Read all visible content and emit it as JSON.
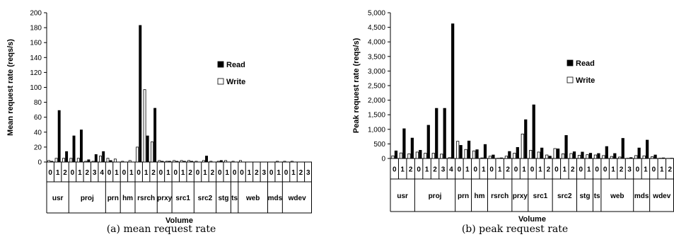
{
  "chart_data": [
    {
      "type": "bar",
      "caption": "(a) mean request rate",
      "xlabel": "Volume",
      "ylabel": "Mean request rate (reqs/s)",
      "ylim": [
        0,
        200
      ],
      "yticks": [
        0,
        20,
        40,
        60,
        80,
        100,
        120,
        140,
        160,
        180,
        200
      ],
      "ytick_labels": [
        "0",
        "20",
        "40",
        "60",
        "80",
        "100",
        "120",
        "140",
        "160",
        "180",
        "200"
      ],
      "legend": "right",
      "groups": [
        {
          "name": "usr",
          "count": 3
        },
        {
          "name": "proj",
          "count": 5
        },
        {
          "name": "prn",
          "count": 2
        },
        {
          "name": "hm",
          "count": 2
        },
        {
          "name": "rsrch",
          "count": 3
        },
        {
          "name": "prxy",
          "count": 2
        },
        {
          "name": "src1",
          "count": 3
        },
        {
          "name": "src2",
          "count": 3
        },
        {
          "name": "stg",
          "count": 2
        },
        {
          "name": "ts",
          "count": 1
        },
        {
          "name": "web",
          "count": 4
        },
        {
          "name": "mds",
          "count": 2
        },
        {
          "name": "wdev",
          "count": 4
        }
      ],
      "categories": [
        "0",
        "1",
        "2",
        "0",
        "1",
        "2",
        "3",
        "4",
        "0",
        "1",
        "0",
        "1",
        "0",
        "1",
        "2",
        "0",
        "1",
        "0",
        "1",
        "2",
        "0",
        "1",
        "2",
        "0",
        "1",
        "0",
        "0",
        "1",
        "2",
        "3",
        "0",
        "1",
        "0",
        "1",
        "2",
        "3"
      ],
      "series": [
        {
          "name": "Read",
          "color": "#000000",
          "values": [
            1,
            69,
            14,
            35,
            43,
            3,
            10,
            14,
            2,
            0,
            0,
            0,
            183,
            35,
            72,
            1,
            1,
            1,
            1,
            1,
            0,
            8,
            0,
            2,
            0,
            0,
            0,
            0,
            0,
            0,
            0,
            0,
            0,
            0,
            0,
            0
          ]
        },
        {
          "name": "Write",
          "color": "#ffffff",
          "values": [
            2,
            5,
            5,
            5,
            5,
            1,
            1,
            8,
            5,
            4,
            1,
            2,
            20,
            97,
            27,
            2,
            1,
            2,
            2,
            2,
            1,
            2,
            1,
            1,
            2,
            1,
            2,
            0,
            0,
            0,
            0,
            1,
            1,
            1,
            0,
            0
          ]
        }
      ]
    },
    {
      "type": "bar",
      "caption": "(b) peak request rate",
      "xlabel": "Volume",
      "ylabel": "Peak request rate (reqs/s)",
      "ylim": [
        0,
        5000
      ],
      "yticks": [
        0,
        500,
        1000,
        1500,
        2000,
        2500,
        3000,
        3500,
        4000,
        4500,
        5000
      ],
      "ytick_labels": [
        "0",
        "500",
        "1,000",
        "1,500",
        "2,000",
        "2,500",
        "3,000",
        "3,500",
        "4,000",
        "4,500",
        "5,000"
      ],
      "legend": "right",
      "groups": [
        {
          "name": "usr",
          "count": 3
        },
        {
          "name": "proj",
          "count": 5
        },
        {
          "name": "prn",
          "count": 2
        },
        {
          "name": "hm",
          "count": 2
        },
        {
          "name": "rsrch",
          "count": 3
        },
        {
          "name": "prxy",
          "count": 2
        },
        {
          "name": "src1",
          "count": 3
        },
        {
          "name": "src2",
          "count": 3
        },
        {
          "name": "stg",
          "count": 2
        },
        {
          "name": "ts",
          "count": 1
        },
        {
          "name": "web",
          "count": 4
        },
        {
          "name": "mds",
          "count": 2
        },
        {
          "name": "wdev",
          "count": 3
        }
      ],
      "categories": [
        "0",
        "1",
        "2",
        "0",
        "1",
        "2",
        "3",
        "4",
        "0",
        "1",
        "0",
        "1",
        "0",
        "1",
        "2",
        "0",
        "1",
        "0",
        "1",
        "2",
        "0",
        "1",
        "2",
        "0",
        "1",
        "0",
        "0",
        "1",
        "2",
        "3",
        "0",
        "1",
        "0",
        "1",
        "2"
      ],
      "series": [
        {
          "name": "Read",
          "color": "#000000",
          "values": [
            260,
            1020,
            700,
            280,
            1140,
            1720,
            1720,
            4620,
            450,
            600,
            300,
            480,
            120,
            20,
            240,
            380,
            1330,
            1840,
            360,
            80,
            330,
            790,
            230,
            220,
            180,
            170,
            410,
            170,
            690,
            30,
            360,
            630,
            120,
            20,
            10
          ]
        },
        {
          "name": "Write",
          "color": "#ffffff",
          "values": [
            90,
            190,
            160,
            220,
            180,
            180,
            150,
            30,
            590,
            310,
            260,
            20,
            80,
            10,
            80,
            180,
            840,
            280,
            220,
            120,
            340,
            160,
            170,
            110,
            130,
            120,
            100,
            70,
            50,
            10,
            100,
            90,
            60,
            10,
            5
          ]
        }
      ]
    }
  ]
}
